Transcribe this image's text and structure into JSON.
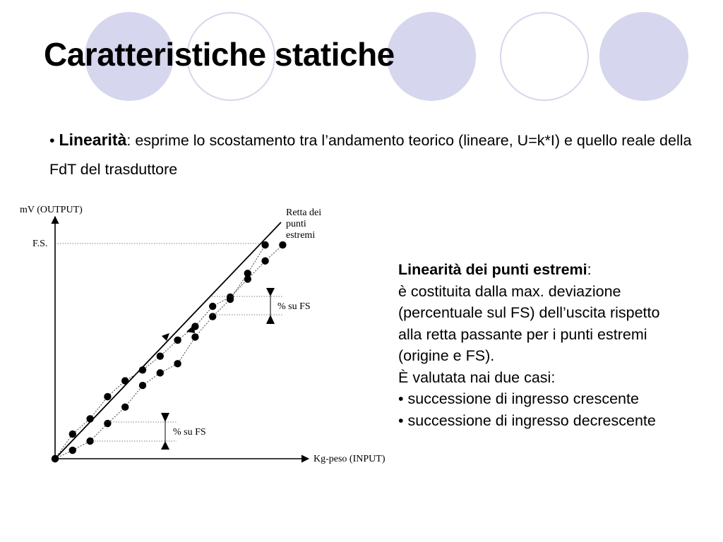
{
  "slide": {
    "title": "Caratteristiche statiche",
    "bullet": {
      "marker": "•",
      "term": "Linearità",
      "text": ": esprime lo scostamento tra l’andamento teorico (lineare, U=k*I) e quello reale della FdT del trasduttore"
    },
    "side": {
      "heading": "Linearità dei punti estremi",
      "heading_suffix": ":",
      "lines": [
        "è costituita dalla max. deviazione",
        "(percentuale sul FS) dell’uscita rispetto",
        "alla retta passante per i punti estremi",
        "(origine e FS).",
        "È valutata nai due casi:"
      ],
      "items": [
        "• successione di ingresso crescente",
        "• successione di ingresso decrescente"
      ]
    }
  },
  "diagram": {
    "y_axis_label": "mV (OUTPUT)",
    "x_axis_label": "Kg-peso (INPUT)",
    "fs_label": "F.S.",
    "line_label": [
      "Retta dei",
      "punti",
      "estremi"
    ],
    "pct_label": "% su FS",
    "upper_curve": [
      [
        0,
        0
      ],
      [
        1,
        1.37
      ],
      [
        2,
        2.22
      ],
      [
        3,
        3.45
      ],
      [
        4,
        4.33
      ],
      [
        5,
        4.93
      ],
      [
        6,
        5.7
      ],
      [
        7,
        6.59
      ],
      [
        8,
        7.35
      ],
      [
        9,
        8.47
      ],
      [
        10,
        8.98
      ],
      [
        11,
        9.98
      ],
      [
        12,
        10.99
      ],
      [
        13,
        11.88
      ]
    ],
    "lower_curve": [
      [
        0,
        0
      ],
      [
        1,
        0.47
      ],
      [
        2,
        0.98
      ],
      [
        3,
        1.96
      ],
      [
        4,
        2.87
      ],
      [
        5,
        4.07
      ],
      [
        6,
        4.77
      ],
      [
        7,
        5.28
      ],
      [
        8,
        6.76
      ],
      [
        9,
        7.9
      ],
      [
        10,
        8.86
      ],
      [
        11,
        10.3
      ],
      [
        12,
        11.88
      ]
    ],
    "colors": {
      "decor": "#d6d6ee",
      "ink": "#000000",
      "guide": "#555555"
    }
  }
}
